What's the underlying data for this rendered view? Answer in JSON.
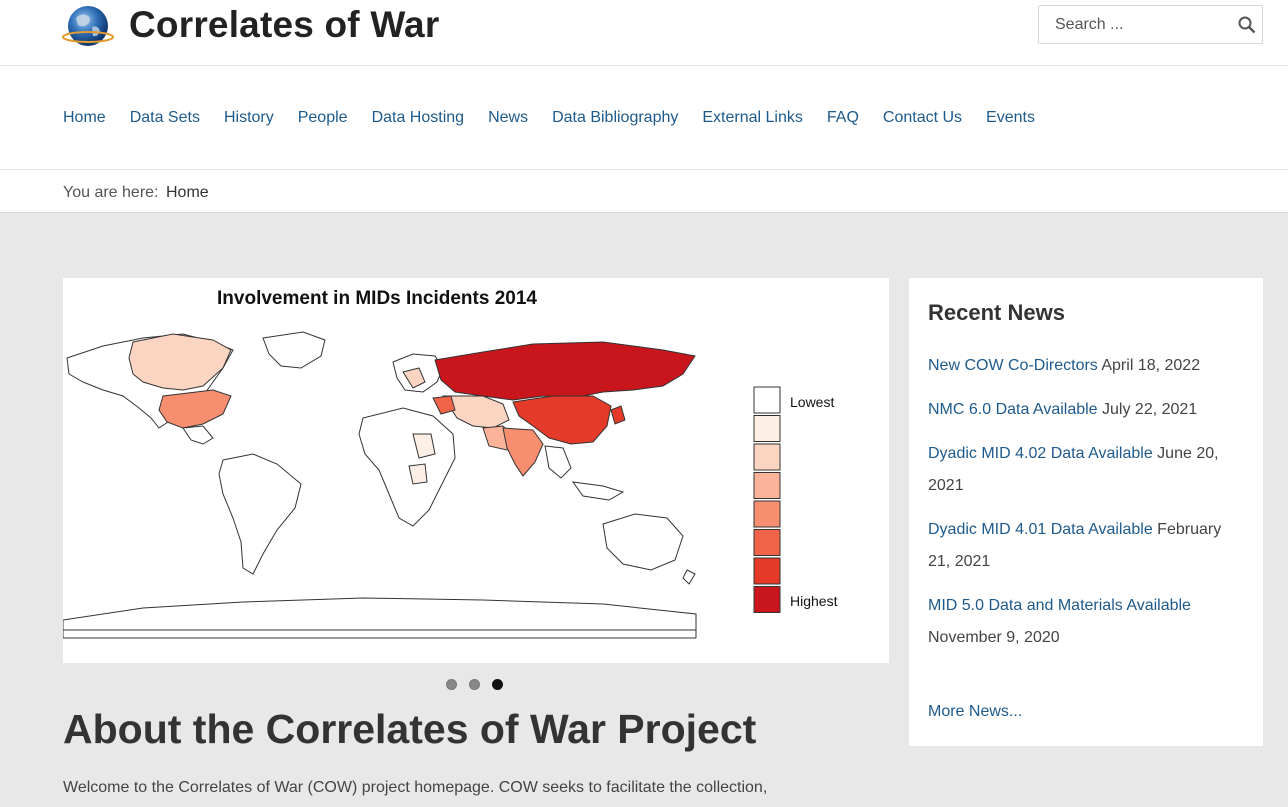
{
  "site": {
    "title": "Correlates of War"
  },
  "search": {
    "placeholder": "Search ..."
  },
  "nav": {
    "items": [
      "Home",
      "Data Sets",
      "History",
      "People",
      "Data Hosting",
      "News",
      "Data Bibliography",
      "External Links",
      "FAQ",
      "Contact Us",
      "Events"
    ]
  },
  "breadcrumb": {
    "label": "You are here:",
    "current": "Home"
  },
  "slider": {
    "title": "Involvement in MIDs Incidents 2014",
    "legend_low": "Lowest",
    "legend_high": "Highest",
    "legend_colors": [
      "#ffffff",
      "#fdeee6",
      "#fcd5c2",
      "#fbb49a",
      "#f88e70",
      "#f2644a",
      "#e53a2a",
      "#c8161c"
    ],
    "dots": 3,
    "active_dot": 3
  },
  "about": {
    "title": "About the Correlates of War Project",
    "text": "Welcome to the Correlates of War (COW) project homepage. COW seeks to facilitate the collection,"
  },
  "news": {
    "heading": "Recent News",
    "items": [
      {
        "title": "New COW Co-Directors",
        "date": "April 18, 2022"
      },
      {
        "title": "NMC 6.0 Data Available",
        "date": "July 22, 2021"
      },
      {
        "title": "Dyadic MID 4.02 Data Available",
        "date": "June 20, 2021"
      },
      {
        "title": "Dyadic MID 4.01 Data Available",
        "date": "February 21, 2021"
      },
      {
        "title": "MID 5.0 Data and Materials Available",
        "date": "November 9, 2020"
      }
    ],
    "more": "More News..."
  },
  "colors": {
    "link": "#1e5a8c",
    "background": "#e8e8e8"
  }
}
